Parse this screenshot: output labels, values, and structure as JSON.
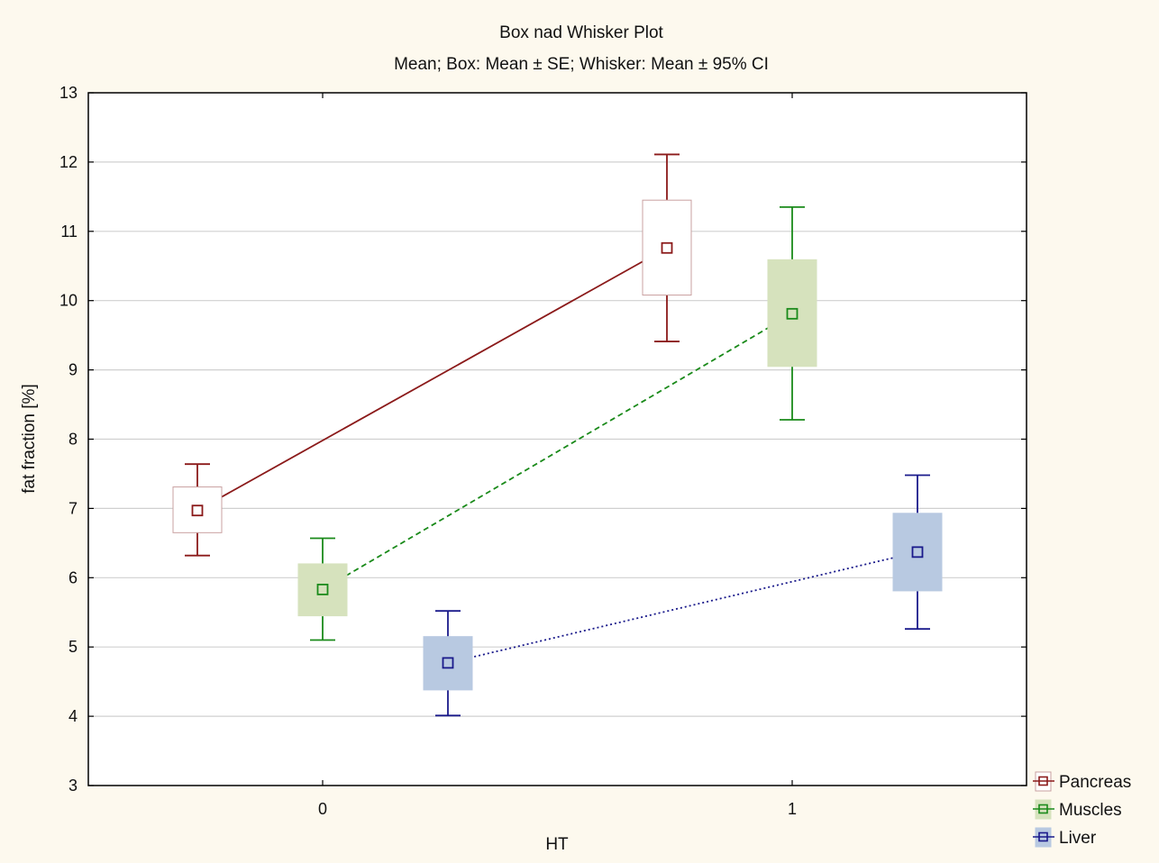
{
  "chart_data": {
    "type": "box",
    "title": "Box nad Whisker Plot",
    "subtitle": "Mean; Box: Mean ± SE; Whisker: Mean ± 95% CI",
    "xlabel": "HT",
    "ylabel": "fat fraction [%]",
    "categories": [
      "0",
      "1"
    ],
    "ylim": [
      3,
      13
    ],
    "yticks": [
      "3",
      "4",
      "5",
      "6",
      "7",
      "8",
      "9",
      "10",
      "11",
      "12",
      "13"
    ],
    "grid": true,
    "legend_position": "bottom-right, outside plot",
    "series": [
      {
        "name": "Pancreas",
        "color": "#8b1a1a",
        "box_fill": "#ffffff",
        "line_style": "solid",
        "mean": [
          6.97,
          10.76
        ],
        "se_low": [
          6.65,
          10.08
        ],
        "se_high": [
          7.31,
          11.45
        ],
        "ci_low": [
          6.32,
          9.41
        ],
        "ci_high": [
          7.64,
          12.11
        ]
      },
      {
        "name": "Muscles",
        "color": "#1a8a1a",
        "box_fill": "#d6e2bd",
        "line_style": "dashed",
        "mean": [
          5.83,
          9.81
        ],
        "se_low": [
          5.45,
          9.05
        ],
        "se_high": [
          6.2,
          10.59
        ],
        "ci_low": [
          5.1,
          8.28
        ],
        "ci_high": [
          6.57,
          11.35
        ]
      },
      {
        "name": "Liver",
        "color": "#1a1a8b",
        "box_fill": "#b8c9e1",
        "line_style": "dotted",
        "mean": [
          4.77,
          6.37
        ],
        "se_low": [
          4.38,
          5.81
        ],
        "se_high": [
          5.15,
          6.93
        ],
        "ci_low": [
          4.01,
          5.26
        ],
        "ci_high": [
          5.52,
          7.48
        ]
      }
    ]
  }
}
